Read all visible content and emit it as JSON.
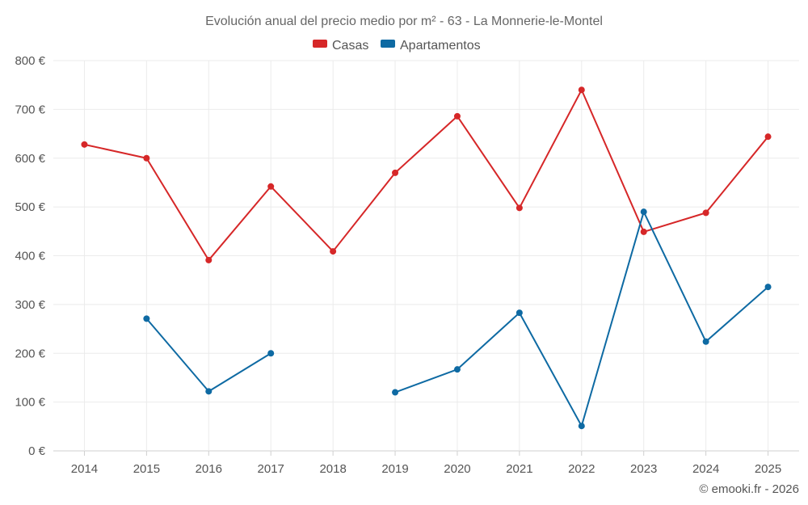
{
  "chart_data": {
    "type": "line",
    "title": "Evolución anual del precio medio por m² - 63 - La Monnerie-le-Montel",
    "categories": [
      "2014",
      "2015",
      "2016",
      "2017",
      "2018",
      "2019",
      "2020",
      "2021",
      "2022",
      "2023",
      "2024",
      "2025"
    ],
    "y_ticks": [
      "0 €",
      "100 €",
      "200 €",
      "300 €",
      "400 €",
      "500 €",
      "600 €",
      "700 €",
      "800 €"
    ],
    "ylim": [
      0,
      800
    ],
    "grid": true,
    "legend_position": "top-center",
    "series": [
      {
        "name": "Casas",
        "color": "#d62728",
        "values": [
          628,
          600,
          391,
          542,
          409,
          570,
          686,
          498,
          740,
          449,
          488,
          644
        ]
      },
      {
        "name": "Apartamentos",
        "color": "#0e6aa3",
        "values": [
          null,
          271,
          122,
          200,
          null,
          120,
          167,
          283,
          51,
          490,
          224,
          336
        ]
      }
    ]
  },
  "credit": "© emooki.fr - 2026"
}
